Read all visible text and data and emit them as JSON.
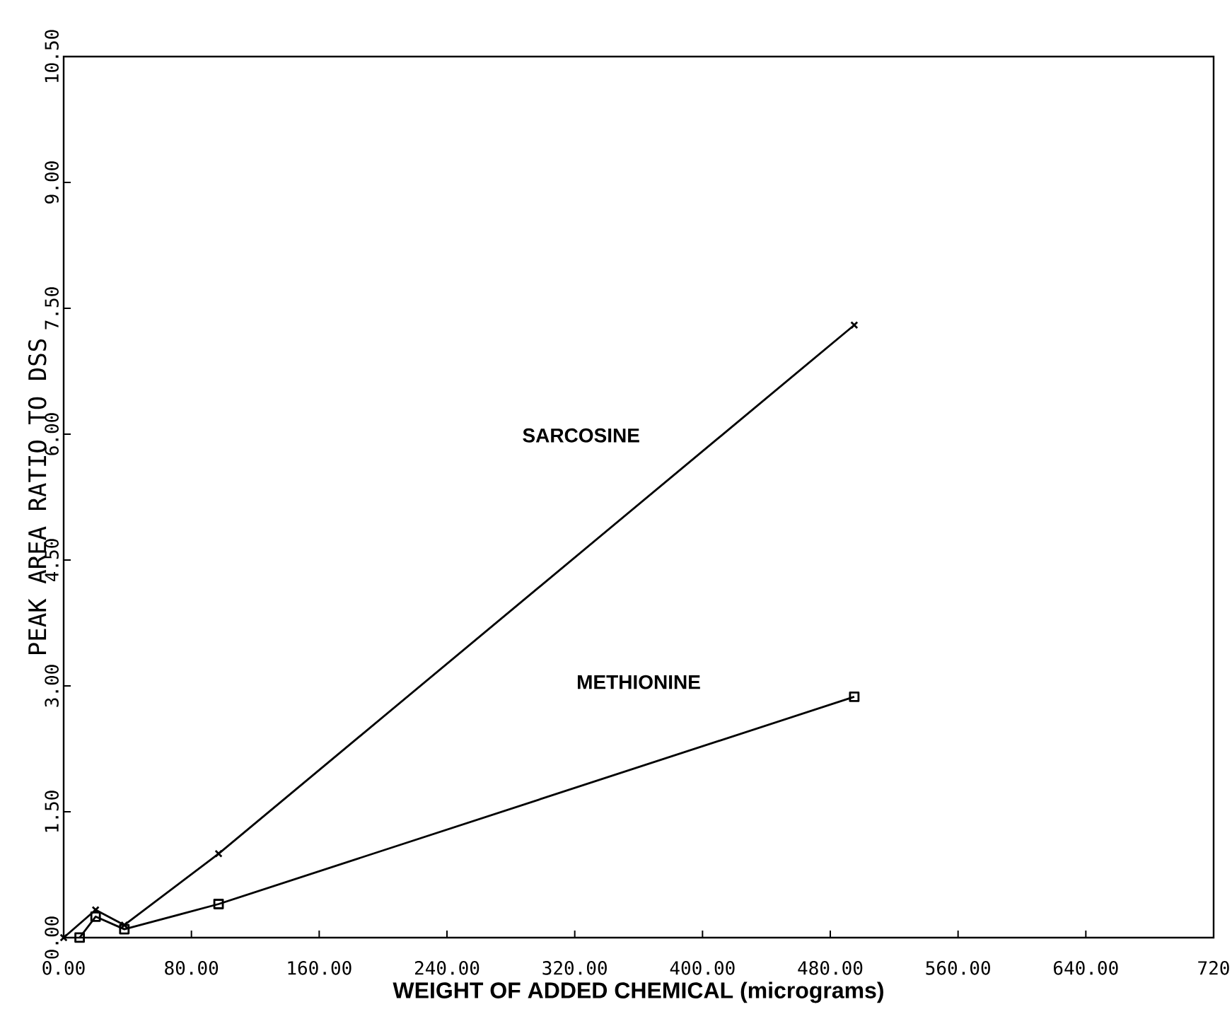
{
  "chart_data": {
    "type": "line",
    "xlabel": "WEIGHT OF ADDED CHEMICAL (micrograms)",
    "ylabel": "PEAK AREA RATIO TO DSS",
    "xlim": [
      0,
      720
    ],
    "ylim": [
      0,
      10.5
    ],
    "xticks": [
      {
        "value": 0,
        "label": "0.00"
      },
      {
        "value": 80,
        "label": "80.00"
      },
      {
        "value": 160,
        "label": "160.00"
      },
      {
        "value": 240,
        "label": "240.00"
      },
      {
        "value": 320,
        "label": "320.00"
      },
      {
        "value": 400,
        "label": "400.00"
      },
      {
        "value": 480,
        "label": "480.00"
      },
      {
        "value": 560,
        "label": "560.00"
      },
      {
        "value": 640,
        "label": "640.00"
      },
      {
        "value": 720,
        "label": "720"
      }
    ],
    "yticks": [
      {
        "value": 0,
        "label": "0.00"
      },
      {
        "value": 1.5,
        "label": "1.50"
      },
      {
        "value": 3,
        "label": "3.00"
      },
      {
        "value": 4.5,
        "label": "4.50"
      },
      {
        "value": 6,
        "label": "6.00"
      },
      {
        "value": 7.5,
        "label": "7.50"
      },
      {
        "value": 9,
        "label": "9.00"
      },
      {
        "value": 10.5,
        "label": "10.50"
      }
    ],
    "grid": false,
    "legend": false,
    "line_style": "solid",
    "series": [
      {
        "name": "SARCOSINE",
        "color": "#000000",
        "marker": "cross",
        "x": [
          0,
          20,
          38,
          97,
          495
        ],
        "values": [
          0,
          0.33,
          0.15,
          1.0,
          7.3
        ]
      },
      {
        "name": "METHIONINE",
        "color": "#000000",
        "marker": "square",
        "x": [
          10,
          20,
          38,
          97,
          495
        ],
        "values": [
          0,
          0.25,
          0.1,
          0.4,
          2.87
        ]
      }
    ]
  }
}
